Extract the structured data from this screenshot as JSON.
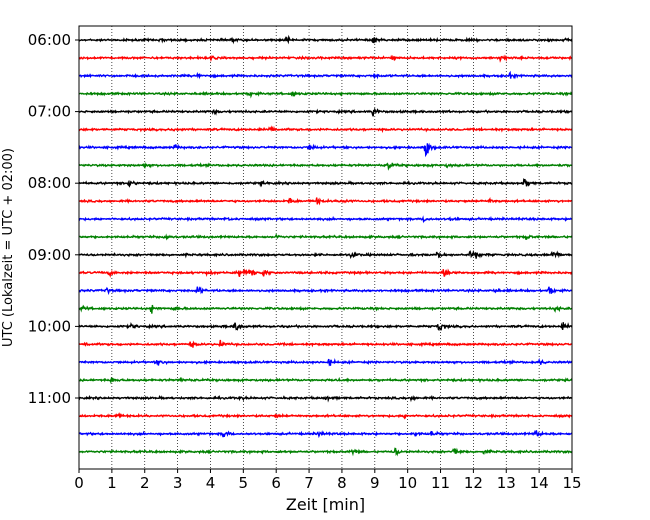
{
  "chart_data": {
    "type": "line",
    "xlabel": "Zeit  [min]",
    "ylabel": "UTC (Lokalzeit = UTC + 02:00)",
    "xlim": [
      0,
      15
    ],
    "x_ticks": [
      "0",
      "1",
      "2",
      "3",
      "4",
      "5",
      "6",
      "7",
      "8",
      "9",
      "10",
      "11",
      "12",
      "13",
      "14",
      "15"
    ],
    "y_ticks": [
      "06:00",
      "07:00",
      "08:00",
      "09:00",
      "10:00",
      "11:00"
    ],
    "grid": "vertical-dotted",
    "trace_interval_min": 15,
    "color_cycle": [
      "#000000",
      "#ff0000",
      "#0000ff",
      "#008000"
    ],
    "traces": [
      {
        "start": "06:00",
        "color": "black",
        "events": [
          [
            6.3,
            1.6
          ],
          [
            8.95,
            2.0
          ],
          [
            14.8,
            1.5
          ],
          [
            4.6,
            0.9
          ],
          [
            2.5,
            0.7
          ]
        ]
      },
      {
        "start": "06:15",
        "color": "red",
        "events": [
          [
            12.8,
            2.0
          ],
          [
            9.5,
            0.9
          ],
          [
            4.0,
            0.8
          ]
        ]
      },
      {
        "start": "06:30",
        "color": "blue",
        "events": [
          [
            3.6,
            1.0
          ],
          [
            13.1,
            1.1
          ],
          [
            9.0,
            0.7
          ]
        ]
      },
      {
        "start": "06:45",
        "color": "green",
        "events": [
          [
            5.2,
            1.0
          ],
          [
            6.5,
            1.3
          ]
        ]
      },
      {
        "start": "07:00",
        "color": "black",
        "events": [
          [
            8.95,
            2.2
          ],
          [
            4.1,
            0.8
          ]
        ]
      },
      {
        "start": "07:15",
        "color": "red",
        "events": [
          [
            5.8,
            2.2
          ],
          [
            2.9,
            1.0
          ]
        ]
      },
      {
        "start": "07:30",
        "color": "blue",
        "events": [
          [
            10.55,
            5.0
          ],
          [
            7.0,
            2.2
          ],
          [
            2.9,
            1.3
          ]
        ]
      },
      {
        "start": "07:45",
        "color": "green",
        "events": [
          [
            9.4,
            2.2
          ],
          [
            2.0,
            0.8
          ],
          [
            11.2,
            0.7
          ]
        ]
      },
      {
        "start": "08:00",
        "color": "black",
        "events": [
          [
            1.5,
            2.0
          ],
          [
            13.55,
            2.2
          ],
          [
            5.5,
            0.6
          ]
        ]
      },
      {
        "start": "08:15",
        "color": "red",
        "events": [
          [
            6.4,
            1.8
          ],
          [
            7.2,
            2.0
          ],
          [
            8.0,
            1.6
          ],
          [
            12.5,
            1.1
          ]
        ]
      },
      {
        "start": "08:30",
        "color": "blue",
        "events": [
          [
            10.5,
            1.4
          ],
          [
            11.3,
            0.7
          ],
          [
            4.5,
            0.6
          ]
        ]
      },
      {
        "start": "08:45",
        "color": "green",
        "events": [
          [
            2.6,
            1.6
          ],
          [
            13.6,
            1.2
          ],
          [
            6.0,
            0.7
          ]
        ]
      },
      {
        "start": "09:00",
        "color": "black",
        "events": [
          [
            14.4,
            2.8
          ],
          [
            11.9,
            2.0
          ],
          [
            12.1,
            1.6
          ],
          [
            8.3,
            1.3
          ],
          [
            10.9,
            1.5
          ]
        ]
      },
      {
        "start": "09:15",
        "color": "red",
        "events": [
          [
            4.9,
            3.2
          ],
          [
            5.2,
            2.8
          ],
          [
            5.6,
            2.0
          ],
          [
            11.1,
            3.0
          ],
          [
            3.9,
            1.1
          ],
          [
            0.9,
            1.2
          ]
        ]
      },
      {
        "start": "09:30",
        "color": "blue",
        "events": [
          [
            3.6,
            2.2
          ],
          [
            14.3,
            2.2
          ],
          [
            0.8,
            1.5
          ],
          [
            12.6,
            1.0
          ]
        ]
      },
      {
        "start": "09:45",
        "color": "green",
        "events": [
          [
            2.2,
            2.0
          ],
          [
            2.9,
            1.2
          ],
          [
            14.5,
            1.3
          ],
          [
            0.1,
            1.2
          ]
        ]
      },
      {
        "start": "10:00",
        "color": "black",
        "events": [
          [
            4.75,
            3.0
          ],
          [
            10.95,
            3.0
          ],
          [
            14.7,
            2.0
          ],
          [
            1.6,
            1.4
          ]
        ]
      },
      {
        "start": "10:15",
        "color": "red",
        "events": [
          [
            3.4,
            1.4
          ],
          [
            4.3,
            1.6
          ],
          [
            0.2,
            0.8
          ]
        ]
      },
      {
        "start": "10:30",
        "color": "blue",
        "events": [
          [
            2.4,
            1.6
          ],
          [
            7.6,
            1.7
          ],
          [
            14.0,
            1.2
          ]
        ]
      },
      {
        "start": "10:45",
        "color": "green",
        "events": [
          [
            1.0,
            1.4
          ],
          [
            3.1,
            1.3
          ],
          [
            7.8,
            0.7
          ]
        ]
      },
      {
        "start": "11:00",
        "color": "black",
        "events": [
          [
            7.5,
            1.1
          ],
          [
            10.1,
            1.0
          ],
          [
            4.9,
            0.6
          ]
        ]
      },
      {
        "start": "11:15",
        "color": "red",
        "events": [
          [
            1.1,
            1.4
          ],
          [
            6.0,
            0.8
          ],
          [
            9.9,
            0.7
          ]
        ]
      },
      {
        "start": "11:30",
        "color": "blue",
        "events": [
          [
            4.4,
            2.2
          ],
          [
            13.9,
            2.2
          ],
          [
            10.2,
            1.4
          ],
          [
            10.7,
            1.3
          ],
          [
            7.3,
            1.0
          ]
        ]
      },
      {
        "start": "11:45",
        "color": "green",
        "events": [
          [
            9.6,
            2.0
          ],
          [
            11.4,
            2.2
          ],
          [
            8.3,
            1.6
          ],
          [
            12.3,
            0.9
          ]
        ]
      }
    ]
  }
}
